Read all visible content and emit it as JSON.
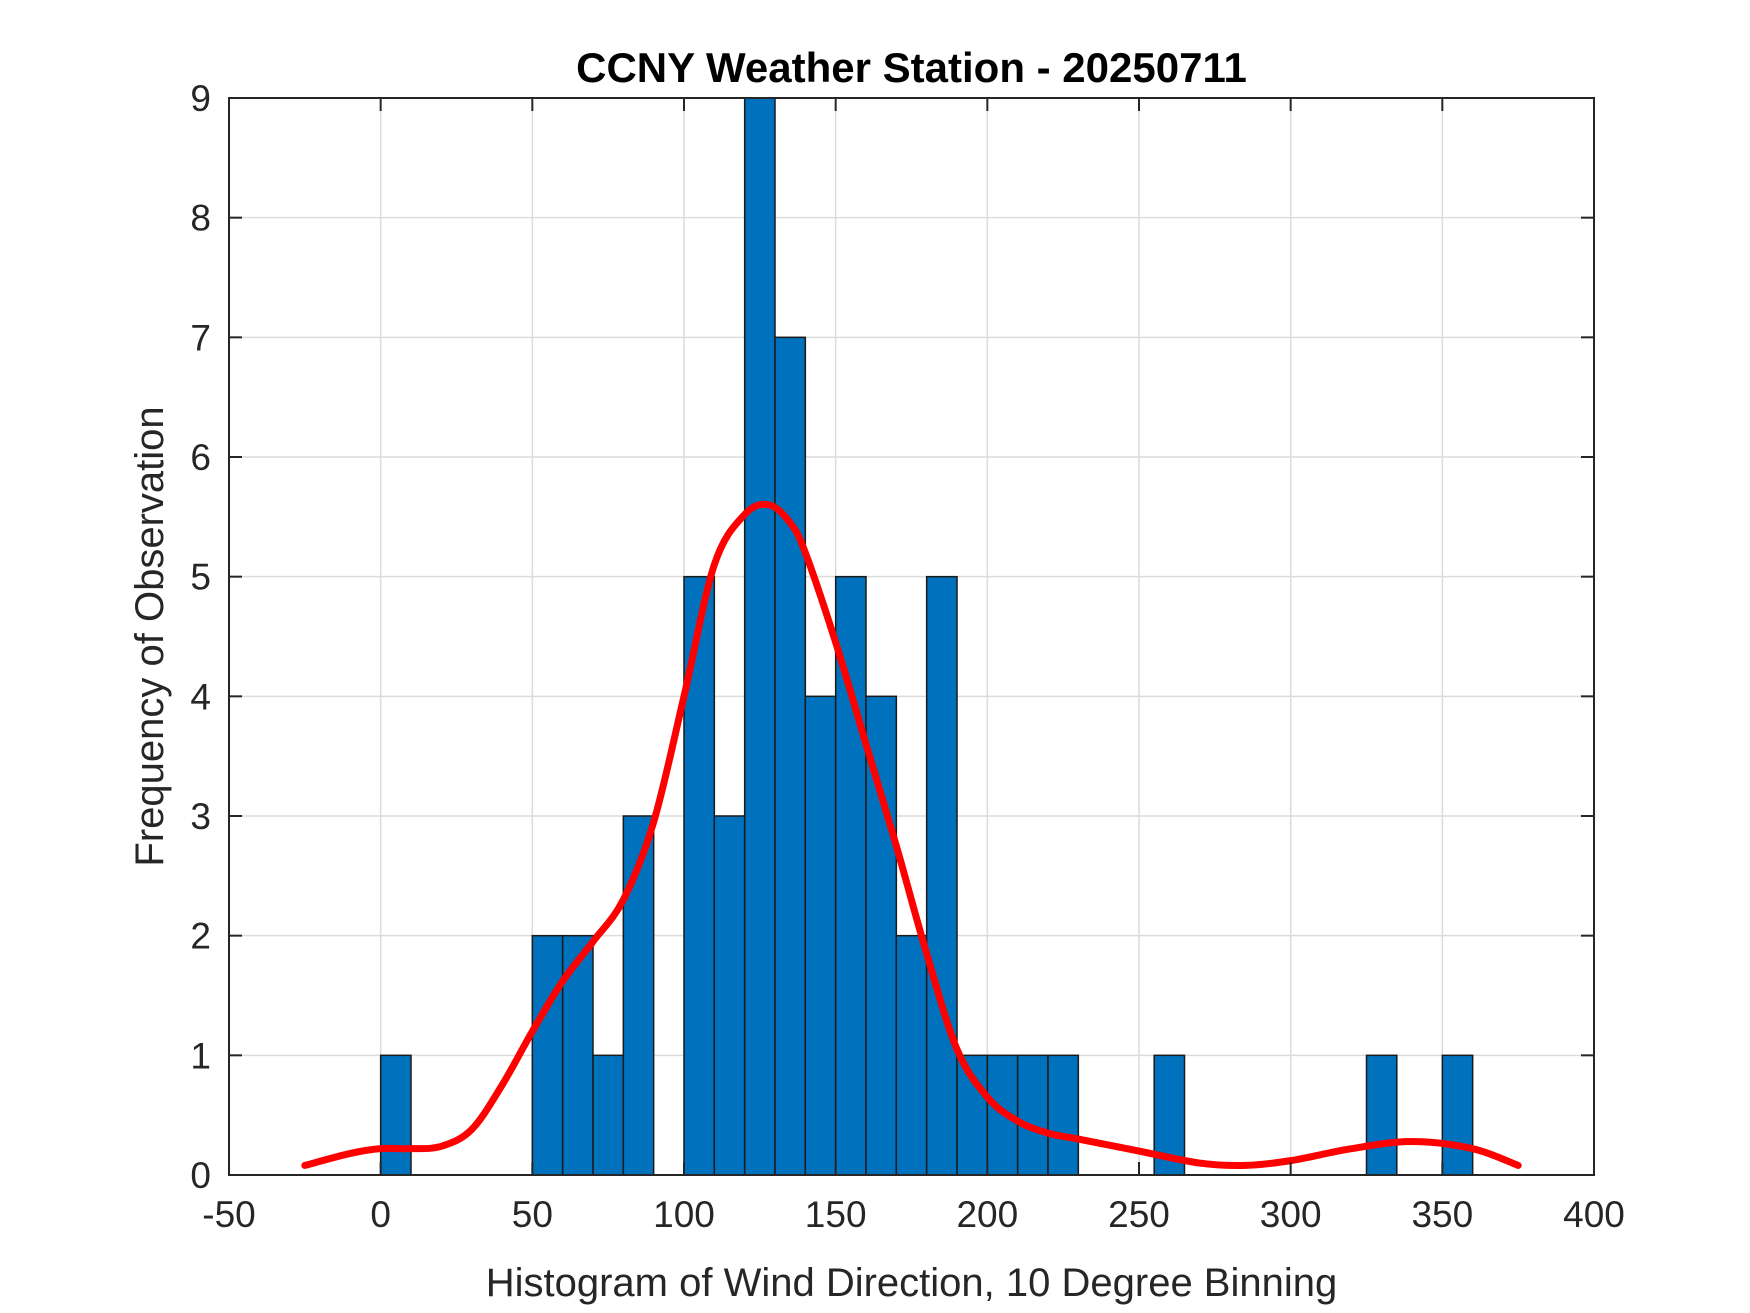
{
  "chart_data": {
    "type": "bar",
    "title": "CCNY Weather Station - 20250711",
    "xlabel": "Histogram of Wind Direction, 10 Degree Binning",
    "ylabel": "Frequency of Observation",
    "xlim": [
      -50,
      400
    ],
    "ylim": [
      0,
      9
    ],
    "xticks": [
      -50,
      0,
      50,
      100,
      150,
      200,
      250,
      300,
      350,
      400
    ],
    "yticks": [
      0,
      1,
      2,
      3,
      4,
      5,
      6,
      7,
      8,
      9
    ],
    "grid": true,
    "bin_width": 10,
    "bar_color": "#0072BD",
    "bars": [
      {
        "x": 0,
        "value": 1
      },
      {
        "x": 50,
        "value": 2
      },
      {
        "x": 60,
        "value": 2
      },
      {
        "x": 70,
        "value": 1
      },
      {
        "x": 80,
        "value": 3
      },
      {
        "x": 100,
        "value": 5
      },
      {
        "x": 110,
        "value": 3
      },
      {
        "x": 120,
        "value": 9
      },
      {
        "x": 130,
        "value": 7
      },
      {
        "x": 140,
        "value": 4
      },
      {
        "x": 150,
        "value": 5
      },
      {
        "x": 160,
        "value": 4
      },
      {
        "x": 170,
        "value": 2
      },
      {
        "x": 180,
        "value": 5
      },
      {
        "x": 190,
        "value": 1
      },
      {
        "x": 200,
        "value": 1
      },
      {
        "x": 210,
        "value": 1
      },
      {
        "x": 220,
        "value": 1
      },
      {
        "x": 255,
        "value": 1
      },
      {
        "x": 325,
        "value": 1
      },
      {
        "x": 350,
        "value": 1
      }
    ],
    "density_curve": {
      "color": "#FF0000",
      "x": [
        -25,
        -10,
        0,
        10,
        20,
        30,
        40,
        50,
        60,
        70,
        80,
        90,
        100,
        110,
        120,
        128,
        135,
        140,
        150,
        160,
        170,
        180,
        190,
        200,
        210,
        220,
        230,
        250,
        270,
        285,
        300,
        320,
        340,
        360,
        375
      ],
      "y": [
        0.08,
        0.18,
        0.22,
        0.22,
        0.24,
        0.38,
        0.75,
        1.2,
        1.62,
        1.95,
        2.3,
        2.95,
        4.0,
        5.1,
        5.52,
        5.6,
        5.45,
        5.2,
        4.45,
        3.6,
        2.75,
        1.85,
        1.05,
        0.65,
        0.45,
        0.35,
        0.3,
        0.2,
        0.1,
        0.08,
        0.12,
        0.22,
        0.28,
        0.22,
        0.08
      ]
    }
  }
}
